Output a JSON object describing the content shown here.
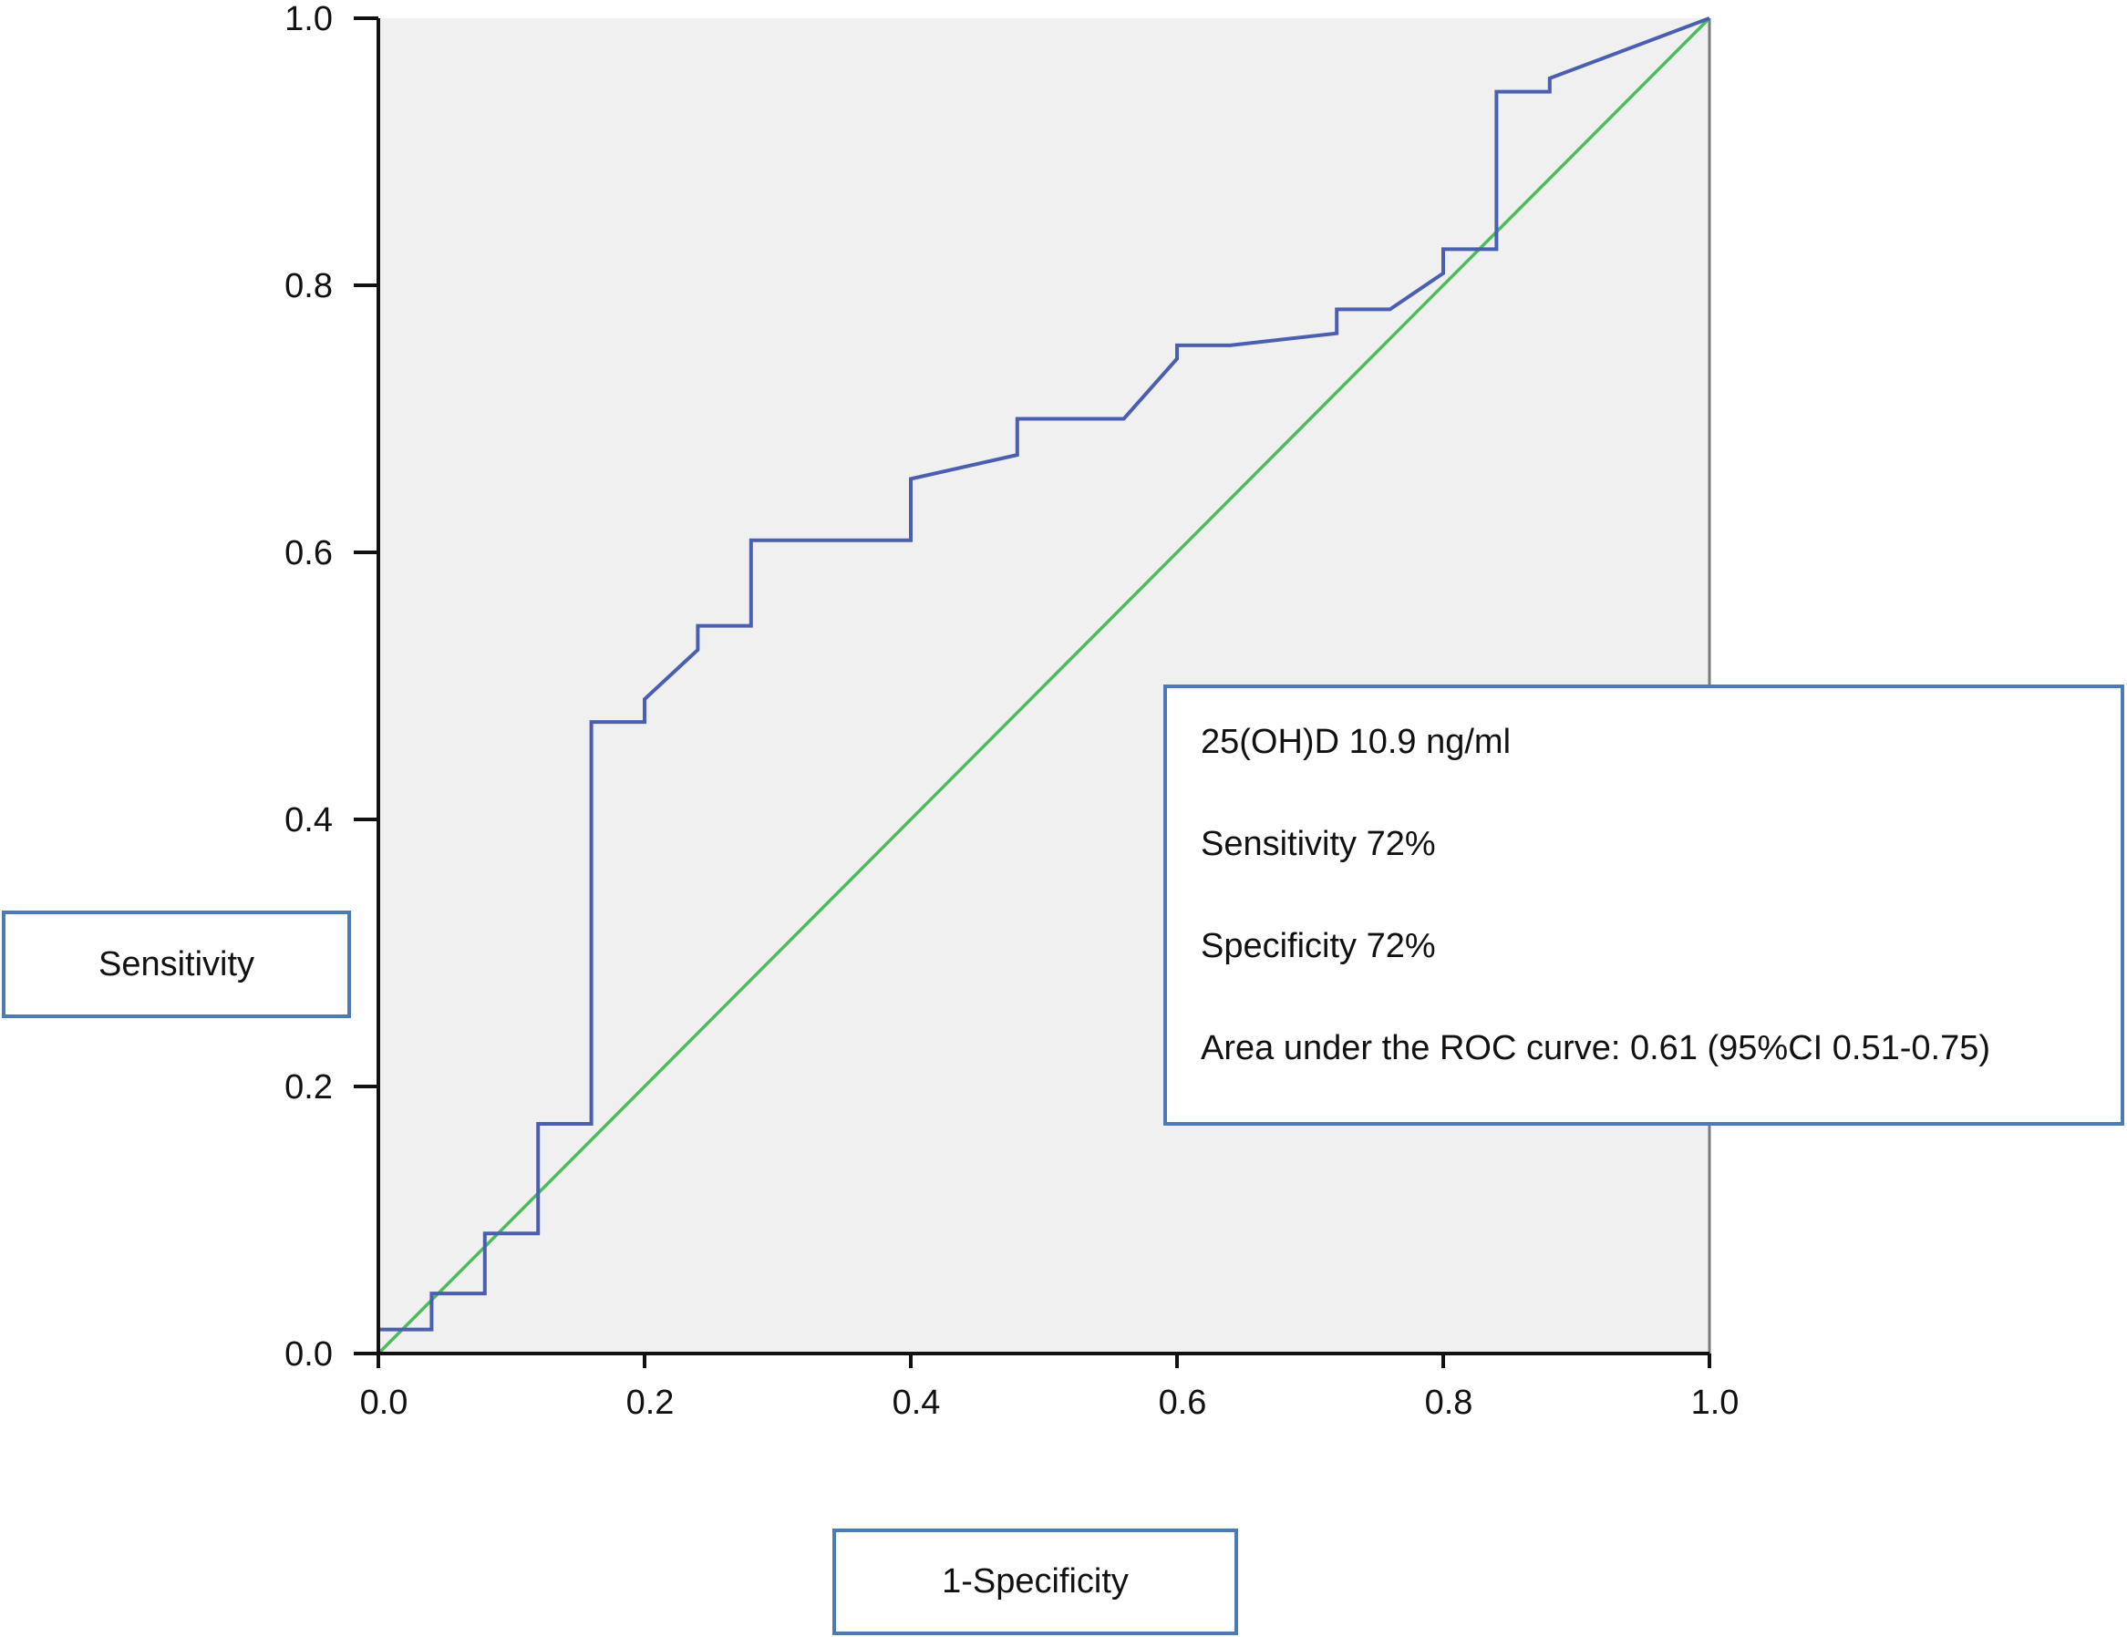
{
  "chart_data": {
    "type": "line",
    "title": "",
    "xlabel": "1-Specificity",
    "ylabel": "Sensitivity",
    "xlim": [
      0,
      1
    ],
    "ylim": [
      0,
      1
    ],
    "grid": false,
    "x_ticks": [
      "0.0",
      "0.2",
      "0.4",
      "0.6",
      "0.8",
      "1.0"
    ],
    "y_ticks": [
      "0.0",
      "0.2",
      "0.4",
      "0.6",
      "0.8",
      "1.0"
    ],
    "series": [
      {
        "color": "#4a5fb0",
        "x": [
          0.0,
          0.0,
          0.04,
          0.04,
          0.08,
          0.08,
          0.12,
          0.12,
          0.16,
          0.16,
          0.2,
          0.2,
          0.24,
          0.24,
          0.28,
          0.28,
          0.4,
          0.4,
          0.48,
          0.48,
          0.56,
          0.6,
          0.6,
          0.64,
          0.72,
          0.72,
          0.76,
          0.8,
          0.8,
          0.84,
          0.84,
          0.88,
          0.88,
          1.0
        ],
        "y": [
          0.0,
          0.018,
          0.018,
          0.045,
          0.045,
          0.09,
          0.09,
          0.172,
          0.172,
          0.473,
          0.473,
          0.49,
          0.527,
          0.545,
          0.545,
          0.609,
          0.609,
          0.655,
          0.673,
          0.7,
          0.7,
          0.745,
          0.755,
          0.755,
          0.764,
          0.782,
          0.782,
          0.809,
          0.827,
          0.827,
          0.945,
          0.945,
          0.955,
          1.0
        ]
      },
      {
        "color": "#4cbb5a",
        "x": [
          0,
          1
        ],
        "y": [
          0,
          1
        ]
      }
    ],
    "annotation": {
      "lines": [
        "25(OH)D 10.9 ng/ml",
        "Sensitivity 72%",
        "Specificity 72%",
        "Area under the ROC curve: 0.61 (95%CI 0.51-0.75)"
      ]
    },
    "colors": {
      "plot_background": "#f0f0f0",
      "box_border": "#4a7bb7",
      "frame": "#7a7a7a"
    }
  }
}
